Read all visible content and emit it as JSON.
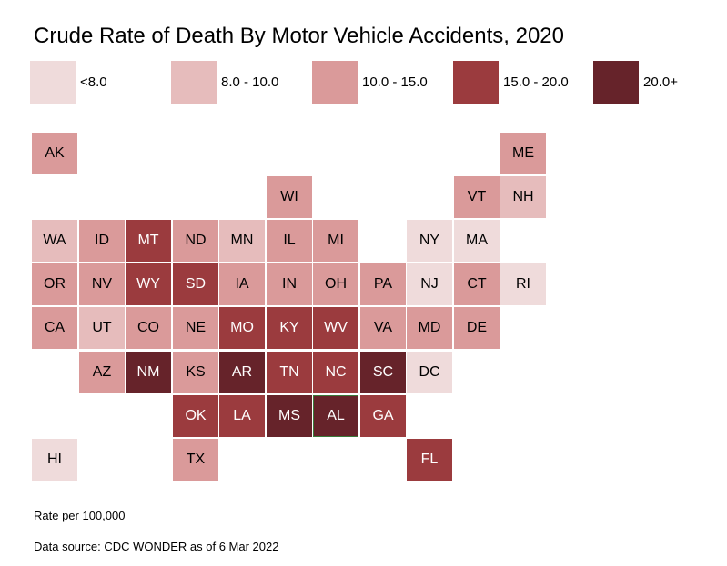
{
  "title": "Crude Rate of Death By Motor Vehicle Accidents, 2020",
  "legend": [
    {
      "label": "<8.0",
      "color": "#efdbdb",
      "class": "c0"
    },
    {
      "label": "8.0 - 10.0",
      "color": "#e6bcbc",
      "class": "c1"
    },
    {
      "label": "10.0 - 15.0",
      "color": "#da9a9a",
      "class": "c2"
    },
    {
      "label": "15.0 - 20.0",
      "color": "#9b3b3e",
      "class": "c3"
    },
    {
      "label": "20.0+",
      "color": "#66232a",
      "class": "c4"
    }
  ],
  "states": [
    {
      "abbr": "AK",
      "class": "c2"
    },
    {
      "abbr": "ME",
      "class": "c2"
    },
    {
      "abbr": "WI",
      "class": "c2"
    },
    {
      "abbr": "VT",
      "class": "c2"
    },
    {
      "abbr": "NH",
      "class": "c1"
    },
    {
      "abbr": "WA",
      "class": "c1"
    },
    {
      "abbr": "ID",
      "class": "c2"
    },
    {
      "abbr": "MT",
      "class": "c3"
    },
    {
      "abbr": "ND",
      "class": "c2"
    },
    {
      "abbr": "MN",
      "class": "c1"
    },
    {
      "abbr": "IL",
      "class": "c2"
    },
    {
      "abbr": "MI",
      "class": "c2"
    },
    {
      "abbr": "NY",
      "class": "c0"
    },
    {
      "abbr": "MA",
      "class": "c0"
    },
    {
      "abbr": "OR",
      "class": "c2"
    },
    {
      "abbr": "NV",
      "class": "c2"
    },
    {
      "abbr": "WY",
      "class": "c3"
    },
    {
      "abbr": "SD",
      "class": "c3"
    },
    {
      "abbr": "IA",
      "class": "c2"
    },
    {
      "abbr": "IN",
      "class": "c2"
    },
    {
      "abbr": "OH",
      "class": "c2"
    },
    {
      "abbr": "PA",
      "class": "c2"
    },
    {
      "abbr": "NJ",
      "class": "c0"
    },
    {
      "abbr": "CT",
      "class": "c2"
    },
    {
      "abbr": "RI",
      "class": "c0"
    },
    {
      "abbr": "CA",
      "class": "c2"
    },
    {
      "abbr": "UT",
      "class": "c1"
    },
    {
      "abbr": "CO",
      "class": "c2"
    },
    {
      "abbr": "NE",
      "class": "c2"
    },
    {
      "abbr": "MO",
      "class": "c3"
    },
    {
      "abbr": "KY",
      "class": "c3"
    },
    {
      "abbr": "WV",
      "class": "c3"
    },
    {
      "abbr": "VA",
      "class": "c2"
    },
    {
      "abbr": "MD",
      "class": "c2"
    },
    {
      "abbr": "DE",
      "class": "c2"
    },
    {
      "abbr": "AZ",
      "class": "c2"
    },
    {
      "abbr": "NM",
      "class": "c4"
    },
    {
      "abbr": "KS",
      "class": "c2"
    },
    {
      "abbr": "AR",
      "class": "c4"
    },
    {
      "abbr": "TN",
      "class": "c3"
    },
    {
      "abbr": "NC",
      "class": "c3"
    },
    {
      "abbr": "SC",
      "class": "c4"
    },
    {
      "abbr": "DC",
      "class": "c0"
    },
    {
      "abbr": "OK",
      "class": "c3"
    },
    {
      "abbr": "LA",
      "class": "c3"
    },
    {
      "abbr": "MS",
      "class": "c4"
    },
    {
      "abbr": "AL",
      "class": "c4"
    },
    {
      "abbr": "GA",
      "class": "c3"
    },
    {
      "abbr": "HI",
      "class": "c0"
    },
    {
      "abbr": "TX",
      "class": "c2"
    },
    {
      "abbr": "FL",
      "class": "c3"
    }
  ],
  "footnotes": {
    "units": "Rate per 100,000",
    "source": "Data source: CDC WONDER as of 6 Mar 2022"
  }
}
